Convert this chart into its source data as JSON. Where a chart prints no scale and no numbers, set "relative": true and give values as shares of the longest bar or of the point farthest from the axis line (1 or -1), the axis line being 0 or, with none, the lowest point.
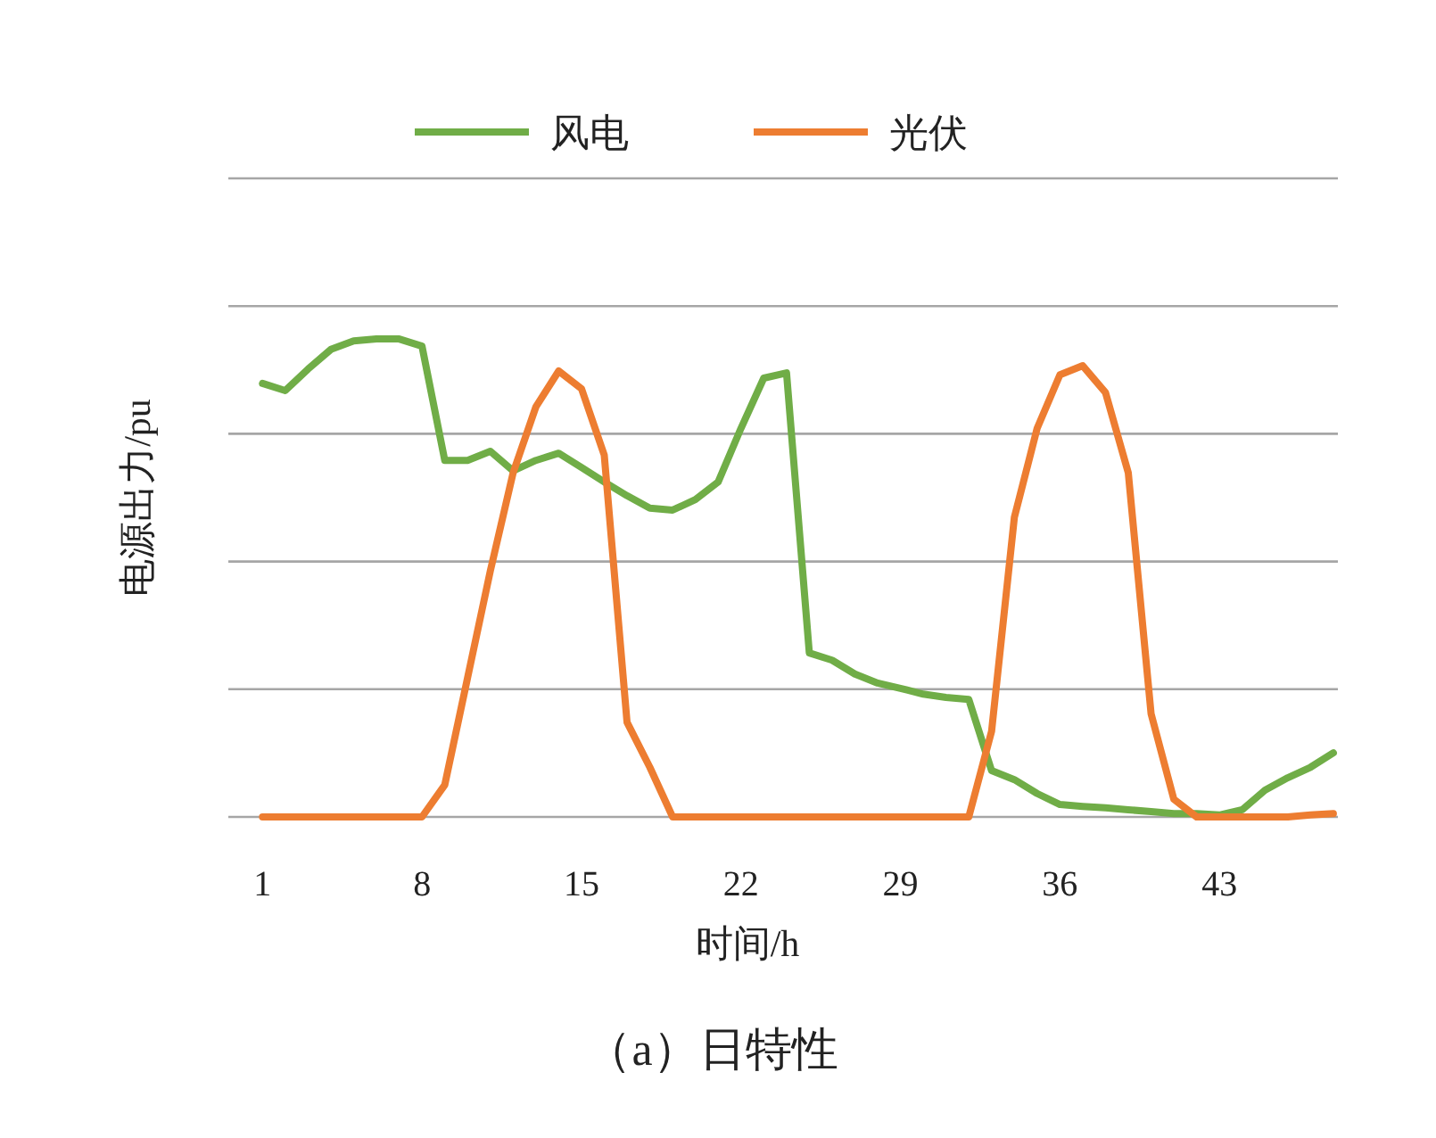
{
  "chart_data": {
    "type": "line",
    "title": "（a）日特性",
    "xlabel": "时间/h",
    "ylabel": "电源出力/pu",
    "x": [
      1,
      2,
      3,
      4,
      5,
      6,
      7,
      8,
      9,
      10,
      11,
      12,
      13,
      14,
      15,
      16,
      17,
      18,
      19,
      20,
      21,
      22,
      23,
      24,
      25,
      26,
      27,
      28,
      29,
      30,
      31,
      32,
      33,
      34,
      35,
      36,
      37,
      38,
      39,
      40,
      41,
      42,
      43,
      44,
      45,
      46,
      47,
      48
    ],
    "xlim": [
      -0.5,
      48.2
    ],
    "xticks": [
      1,
      8,
      15,
      22,
      29,
      36,
      43
    ],
    "relative": true,
    "grid": "y",
    "legend": "top",
    "marker": "none",
    "line_style": "solid",
    "series": [
      {
        "name": "风电",
        "color": "#70ad47",
        "values": [
          0.907,
          0.892,
          0.937,
          0.978,
          0.996,
          1.0,
          1.0,
          0.985,
          0.746,
          0.746,
          0.765,
          0.724,
          0.746,
          0.761,
          0.731,
          0.701,
          0.672,
          0.646,
          0.642,
          0.664,
          0.701,
          0.813,
          0.918,
          0.929,
          0.343,
          0.328,
          0.299,
          0.28,
          0.269,
          0.257,
          0.25,
          0.246,
          0.097,
          0.078,
          0.049,
          0.026,
          0.022,
          0.019,
          0.015,
          0.011,
          0.007,
          0.007,
          0.004,
          0.015,
          0.056,
          0.082,
          0.104,
          0.134
        ]
      },
      {
        "name": "光伏",
        "color": "#ed7d31",
        "values": [
          0,
          0,
          0,
          0,
          0,
          0,
          0,
          0,
          0.067,
          0.291,
          0.515,
          0.72,
          0.858,
          0.933,
          0.896,
          0.757,
          0.198,
          0.104,
          0,
          0,
          0,
          0,
          0,
          0,
          0,
          0,
          0,
          0,
          0,
          0,
          0,
          0,
          0.179,
          0.627,
          0.813,
          0.925,
          0.944,
          0.888,
          0.72,
          0.216,
          0.037,
          0,
          0,
          0,
          0,
          0,
          0.004,
          0.007
        ]
      }
    ]
  }
}
